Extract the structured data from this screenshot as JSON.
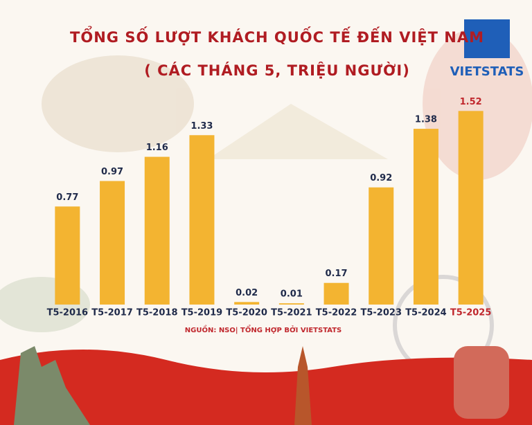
{
  "logo": "VIETSTATS",
  "chart_data": {
    "type": "bar",
    "title": "TỔNG SỐ LƯỢT KHÁCH QUỐC TẾ ĐẾN VIỆT NAM",
    "subtitle": "( CÁC THÁNG 5, TRIỆU NGƯỜI)",
    "source": "NGUỒN: NSO| TỔNG HỢP BỞI VIETSTATS",
    "categories": [
      "T5-2016",
      "T5-2017",
      "T5-2018",
      "T5-2019",
      "T5-2020",
      "T5-2021",
      "T5-2022",
      "T5-2023",
      "T5-2024",
      "T5-2025"
    ],
    "values": [
      0.77,
      0.97,
      1.16,
      1.33,
      0.02,
      0.01,
      0.17,
      0.92,
      1.38,
      1.52
    ],
    "color": "#f3b431",
    "label_colors": [
      "#1f2a4a",
      "#1f2a4a",
      "#1f2a4a",
      "#1f2a4a",
      "#1f2a4a",
      "#1f2a4a",
      "#1f2a4a",
      "#1f2a4a",
      "#1f2a4a",
      "#c0272d"
    ],
    "ylim": [
      0,
      1.6
    ],
    "grid": false
  }
}
